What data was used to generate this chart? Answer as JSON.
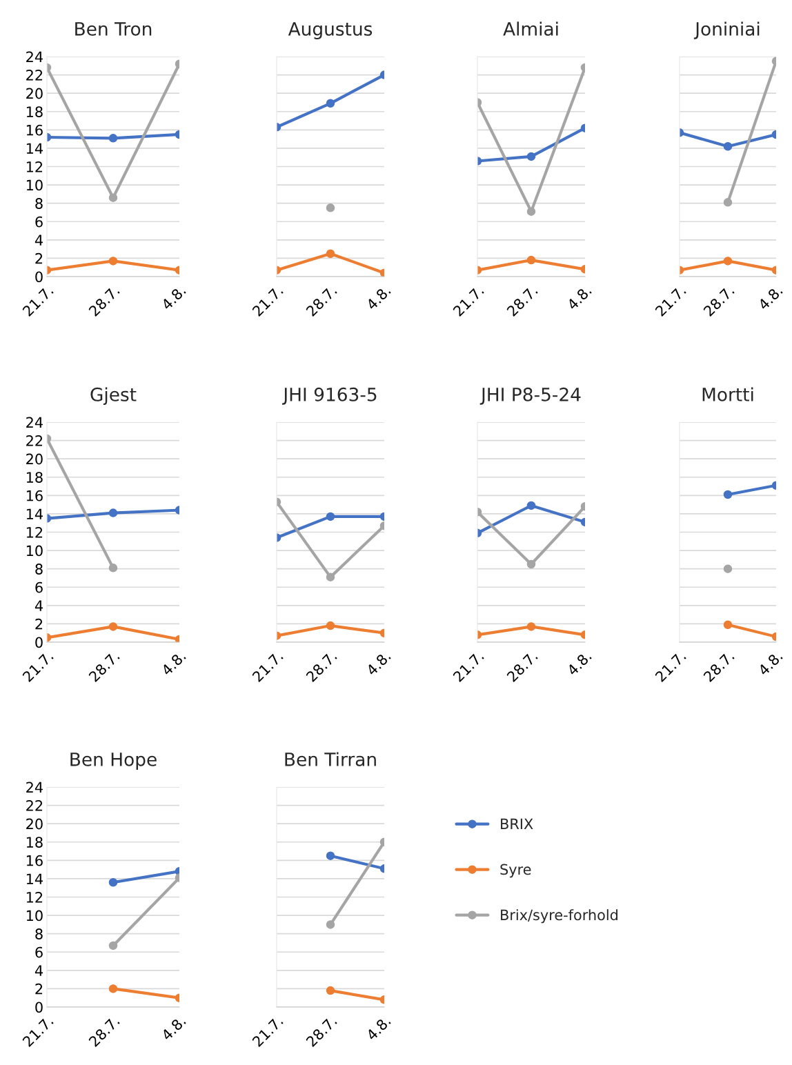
{
  "chart_data": [
    {
      "type": "line",
      "title": "Ben Tron",
      "categories": [
        "21.7.",
        "28.7.",
        "4.8."
      ],
      "ylim": [
        0,
        24
      ],
      "yticks": [
        0,
        2,
        4,
        6,
        8,
        10,
        12,
        14,
        16,
        18,
        20,
        22,
        24
      ],
      "grid": "y",
      "marker": "circle",
      "legend": false,
      "series": [
        {
          "color": "#4472c4",
          "values": [
            15.2,
            15.1,
            15.5
          ]
        },
        {
          "color": "#ed7d31",
          "values": [
            0.7,
            1.7,
            0.7
          ]
        },
        {
          "color": "#a5a5a5",
          "values": [
            22.8,
            8.6,
            23.2
          ]
        }
      ]
    },
    {
      "type": "line",
      "title": "Augustus",
      "categories": [
        "21.7.",
        "28.7.",
        "4.8."
      ],
      "ylim": [
        0,
        24
      ],
      "yticks": [
        0,
        2,
        4,
        6,
        8,
        10,
        12,
        14,
        16,
        18,
        20,
        22,
        24
      ],
      "grid": "y",
      "marker": "circle",
      "legend": false,
      "tick_labels": "x",
      "series": [
        {
          "color": "#4472c4",
          "values": [
            16.3,
            18.9,
            22.0
          ]
        },
        {
          "color": "#ed7d31",
          "values": [
            0.7,
            2.5,
            0.4
          ]
        },
        {
          "color": "#a5a5a5",
          "values": [
            null,
            7.5,
            null
          ]
        }
      ]
    },
    {
      "type": "line",
      "title": "Almiai",
      "categories": [
        "21.7.",
        "28.7.",
        "4.8."
      ],
      "ylim": [
        0,
        24
      ],
      "yticks": [
        0,
        2,
        4,
        6,
        8,
        10,
        12,
        14,
        16,
        18,
        20,
        22,
        24
      ],
      "grid": "y",
      "marker": "circle",
      "legend": false,
      "tick_labels": "x",
      "series": [
        {
          "color": "#4472c4",
          "values": [
            12.6,
            13.1,
            16.2
          ]
        },
        {
          "color": "#ed7d31",
          "values": [
            0.7,
            1.8,
            0.8
          ]
        },
        {
          "color": "#a5a5a5",
          "values": [
            19.0,
            7.1,
            22.8
          ]
        }
      ]
    },
    {
      "type": "line",
      "title": "Joniniai",
      "categories": [
        "21.7.",
        "28.7.",
        "4.8."
      ],
      "ylim": [
        0,
        24
      ],
      "yticks": [
        0,
        2,
        4,
        6,
        8,
        10,
        12,
        14,
        16,
        18,
        20,
        22,
        24
      ],
      "grid": "y",
      "marker": "circle",
      "legend": false,
      "tick_labels": "x",
      "series": [
        {
          "color": "#4472c4",
          "values": [
            15.7,
            14.2,
            15.5
          ]
        },
        {
          "color": "#ed7d31",
          "values": [
            0.7,
            1.7,
            0.7
          ]
        },
        {
          "color": "#a5a5a5",
          "values": [
            null,
            8.1,
            23.5
          ]
        }
      ]
    },
    {
      "type": "line",
      "title": "Gjest",
      "categories": [
        "21.7.",
        "28.7.",
        "4.8."
      ],
      "ylim": [
        0,
        24
      ],
      "yticks": [
        0,
        2,
        4,
        6,
        8,
        10,
        12,
        14,
        16,
        18,
        20,
        22,
        24
      ],
      "grid": "y",
      "marker": "circle",
      "legend": false,
      "series": [
        {
          "color": "#4472c4",
          "values": [
            13.5,
            14.1,
            14.4
          ]
        },
        {
          "color": "#ed7d31",
          "values": [
            0.5,
            1.7,
            0.3
          ]
        },
        {
          "color": "#a5a5a5",
          "values": [
            22.2,
            8.1,
            null
          ]
        }
      ]
    },
    {
      "type": "line",
      "title": "JHI 9163-5",
      "categories": [
        "21.7.",
        "28.7.",
        "4.8."
      ],
      "ylim": [
        0,
        24
      ],
      "yticks": [
        0,
        2,
        4,
        6,
        8,
        10,
        12,
        14,
        16,
        18,
        20,
        22,
        24
      ],
      "grid": "y",
      "marker": "circle",
      "legend": false,
      "tick_labels": "x",
      "series": [
        {
          "color": "#4472c4",
          "values": [
            11.4,
            13.7,
            13.7
          ]
        },
        {
          "color": "#ed7d31",
          "values": [
            0.7,
            1.8,
            1.0
          ]
        },
        {
          "color": "#a5a5a5",
          "values": [
            15.3,
            7.1,
            12.7
          ]
        }
      ]
    },
    {
      "type": "line",
      "title": "JHI P8-5-24",
      "categories": [
        "21.7.",
        "28.7.",
        "4.8."
      ],
      "ylim": [
        0,
        24
      ],
      "yticks": [
        0,
        2,
        4,
        6,
        8,
        10,
        12,
        14,
        16,
        18,
        20,
        22,
        24
      ],
      "grid": "y",
      "marker": "circle",
      "legend": false,
      "tick_labels": "x",
      "series": [
        {
          "color": "#4472c4",
          "values": [
            11.9,
            14.9,
            13.1
          ]
        },
        {
          "color": "#ed7d31",
          "values": [
            0.8,
            1.7,
            0.8
          ]
        },
        {
          "color": "#a5a5a5",
          "values": [
            14.2,
            8.5,
            14.8
          ]
        }
      ]
    },
    {
      "type": "line",
      "title": "Mortti",
      "categories": [
        "21.7.",
        "28.7.",
        "4.8."
      ],
      "ylim": [
        0,
        24
      ],
      "yticks": [
        0,
        2,
        4,
        6,
        8,
        10,
        12,
        14,
        16,
        18,
        20,
        22,
        24
      ],
      "grid": "y",
      "marker": "circle",
      "legend": false,
      "tick_labels": "x",
      "series": [
        {
          "color": "#4472c4",
          "values": [
            null,
            16.1,
            17.1
          ]
        },
        {
          "color": "#ed7d31",
          "values": [
            null,
            1.9,
            0.6
          ]
        },
        {
          "color": "#a5a5a5",
          "values": [
            null,
            8.0,
            null
          ]
        }
      ]
    },
    {
      "type": "line",
      "title": "Ben Hope",
      "categories": [
        "21.7.",
        "28.7.",
        "4.8."
      ],
      "ylim": [
        0,
        24
      ],
      "yticks": [
        0,
        2,
        4,
        6,
        8,
        10,
        12,
        14,
        16,
        18,
        20,
        22,
        24
      ],
      "grid": "y",
      "marker": "circle",
      "legend": false,
      "series": [
        {
          "color": "#4472c4",
          "values": [
            null,
            13.6,
            14.8
          ]
        },
        {
          "color": "#ed7d31",
          "values": [
            null,
            2.0,
            1.0
          ]
        },
        {
          "color": "#a5a5a5",
          "values": [
            null,
            6.7,
            14.1
          ]
        }
      ]
    },
    {
      "type": "line",
      "title": "Ben Tirran",
      "categories": [
        "21.7.",
        "28.7.",
        "4.8."
      ],
      "ylim": [
        0,
        24
      ],
      "yticks": [
        0,
        2,
        4,
        6,
        8,
        10,
        12,
        14,
        16,
        18,
        20,
        22,
        24
      ],
      "grid": "y",
      "marker": "circle",
      "legend": "right",
      "tick_labels": "x",
      "series": [
        {
          "name": "BRIX",
          "color": "#4472c4",
          "values": [
            null,
            16.5,
            15.1
          ]
        },
        {
          "name": "Syre",
          "color": "#ed7d31",
          "values": [
            null,
            1.8,
            0.8
          ]
        },
        {
          "name": "Brix/syre-forhold",
          "color": "#a5a5a5",
          "values": [
            null,
            9.0,
            18.0
          ]
        }
      ]
    }
  ]
}
